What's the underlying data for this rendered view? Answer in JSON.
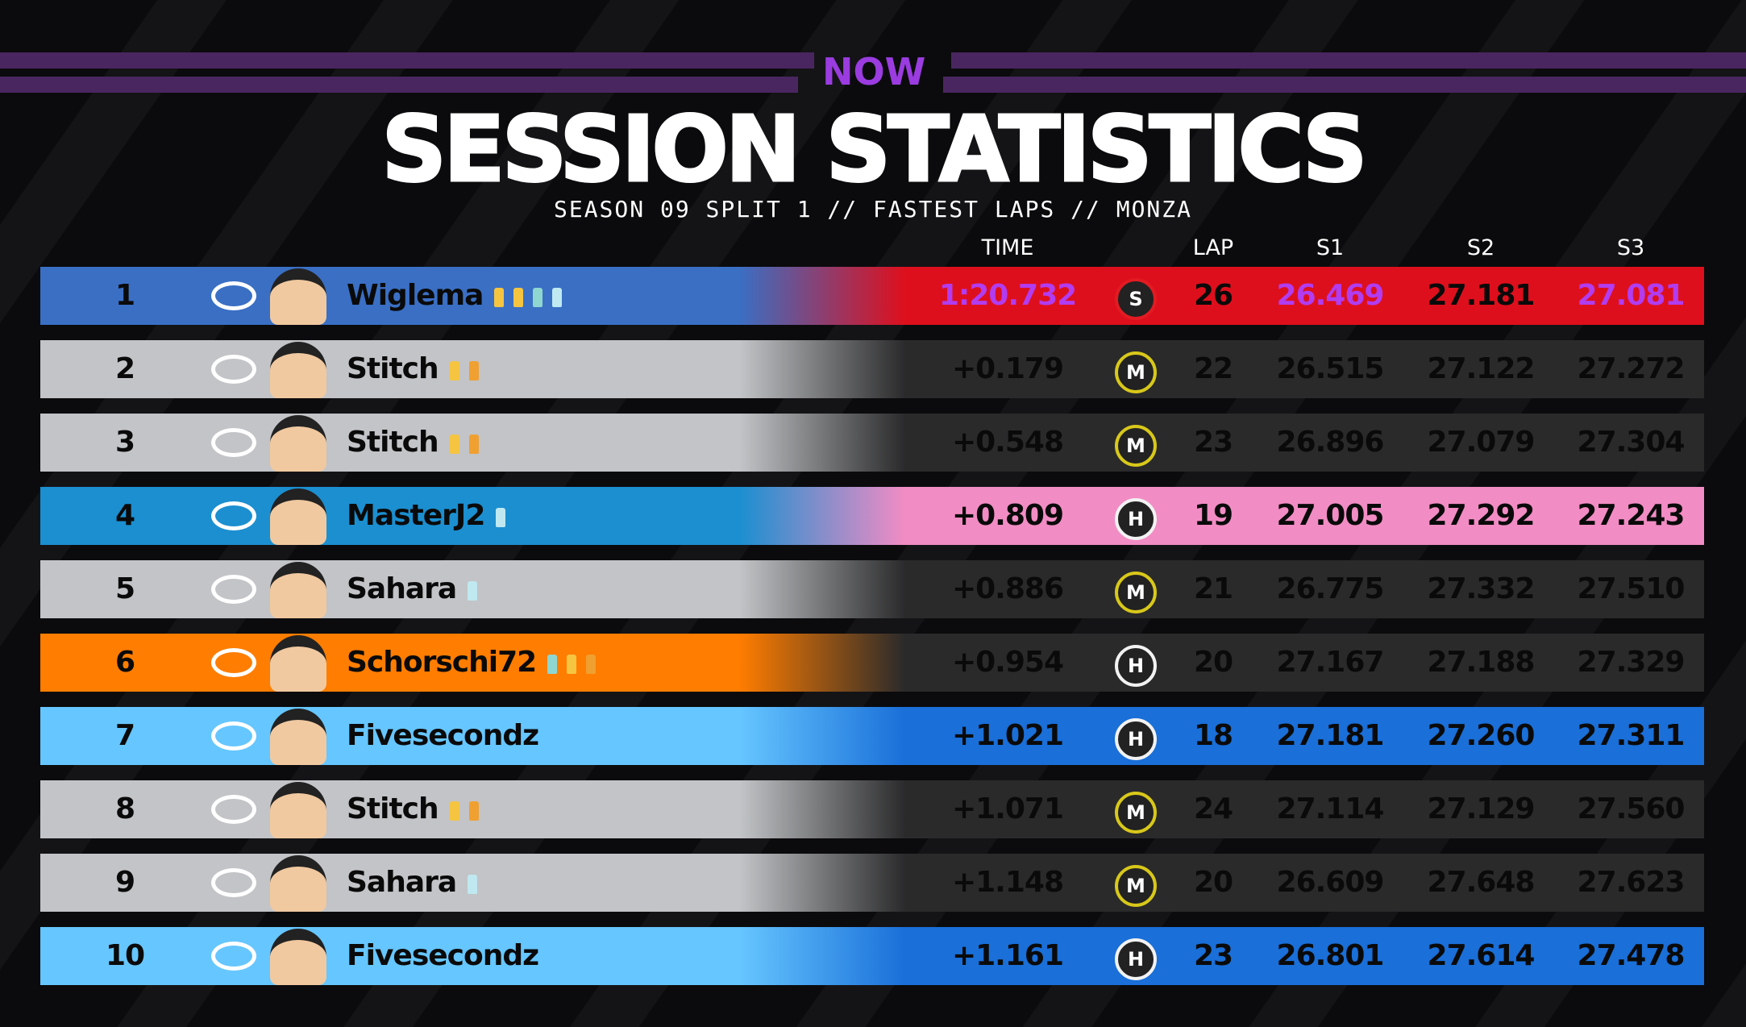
{
  "header": {
    "logo": "NOW",
    "title": "SESSION STATISTICS",
    "subtitle": "SEASON 09 SPLIT 1 // FASTEST LAPS // MONZA"
  },
  "table": {
    "columns": [
      "TIME",
      "LAP",
      "S1",
      "S2",
      "S3"
    ],
    "tyre_colors": {
      "S": "#e21b22",
      "M": "#d8c81a",
      "H": "#f2f2f2"
    },
    "purple": "#b13cf0",
    "rows": [
      {
        "pos": "1",
        "driver": "Wiglema",
        "time": "1:20.732",
        "tyre": "S",
        "lap": "26",
        "s1": "26.469",
        "s2": "27.181",
        "s3": "27.081",
        "color": "#3a6fc4",
        "bg": "#de0f1c",
        "purple_cells": [
          "time",
          "s1",
          "s3"
        ],
        "badges": [
          "#f5c542",
          "#f5c542",
          "#8fd6d0",
          "#bfe8f0"
        ]
      },
      {
        "pos": "2",
        "driver": "Stitch",
        "time": "+0.179",
        "tyre": "M",
        "lap": "22",
        "s1": "26.515",
        "s2": "27.122",
        "s3": "27.272",
        "color": "#c2c4c7",
        "bg": "#2a2a2b",
        "badges": [
          "#f5c542",
          "#f0a030"
        ]
      },
      {
        "pos": "3",
        "driver": "Stitch",
        "time": "+0.548",
        "tyre": "M",
        "lap": "23",
        "s1": "26.896",
        "s2": "27.079",
        "s3": "27.304",
        "color": "#c2c4c7",
        "bg": "#2a2a2b",
        "badges": [
          "#f5c542",
          "#f0a030"
        ]
      },
      {
        "pos": "4",
        "driver": "MasterJ2",
        "time": "+0.809",
        "tyre": "H",
        "lap": "19",
        "s1": "27.005",
        "s2": "27.292",
        "s3": "27.243",
        "color": "#1b8fd0",
        "bg": "#f28cc4",
        "badges": [
          "#bfe8f0"
        ]
      },
      {
        "pos": "5",
        "driver": "Sahara",
        "time": "+0.886",
        "tyre": "M",
        "lap": "21",
        "s1": "26.775",
        "s2": "27.332",
        "s3": "27.510",
        "color": "#c2c4c7",
        "bg": "#2a2a2b",
        "badges": [
          "#bfe8f0"
        ]
      },
      {
        "pos": "6",
        "driver": "Schorschi72",
        "time": "+0.954",
        "tyre": "H",
        "lap": "20",
        "s1": "27.167",
        "s2": "27.188",
        "s3": "27.329",
        "color": "#ff7d00",
        "bg": "#2a2a2b",
        "badges": [
          "#8fd6d0",
          "#f5c542",
          "#f0a030"
        ]
      },
      {
        "pos": "7",
        "driver": "Fivesecondz",
        "time": "+1.021",
        "tyre": "H",
        "lap": "18",
        "s1": "27.181",
        "s2": "27.260",
        "s3": "27.311",
        "color": "#66c6ff",
        "bg": "#1a6fd8",
        "badges": []
      },
      {
        "pos": "8",
        "driver": "Stitch",
        "time": "+1.071",
        "tyre": "M",
        "lap": "24",
        "s1": "27.114",
        "s2": "27.129",
        "s3": "27.560",
        "color": "#c2c4c7",
        "bg": "#2a2a2b",
        "badges": [
          "#f5c542",
          "#f0a030"
        ]
      },
      {
        "pos": "9",
        "driver": "Sahara",
        "time": "+1.148",
        "tyre": "M",
        "lap": "20",
        "s1": "26.609",
        "s2": "27.648",
        "s3": "27.623",
        "color": "#c2c4c7",
        "bg": "#2a2a2b",
        "badges": [
          "#bfe8f0"
        ]
      },
      {
        "pos": "10",
        "driver": "Fivesecondz",
        "time": "+1.161",
        "tyre": "H",
        "lap": "23",
        "s1": "26.801",
        "s2": "27.614",
        "s3": "27.478",
        "color": "#66c6ff",
        "bg": "#1a6fd8",
        "badges": []
      }
    ]
  }
}
